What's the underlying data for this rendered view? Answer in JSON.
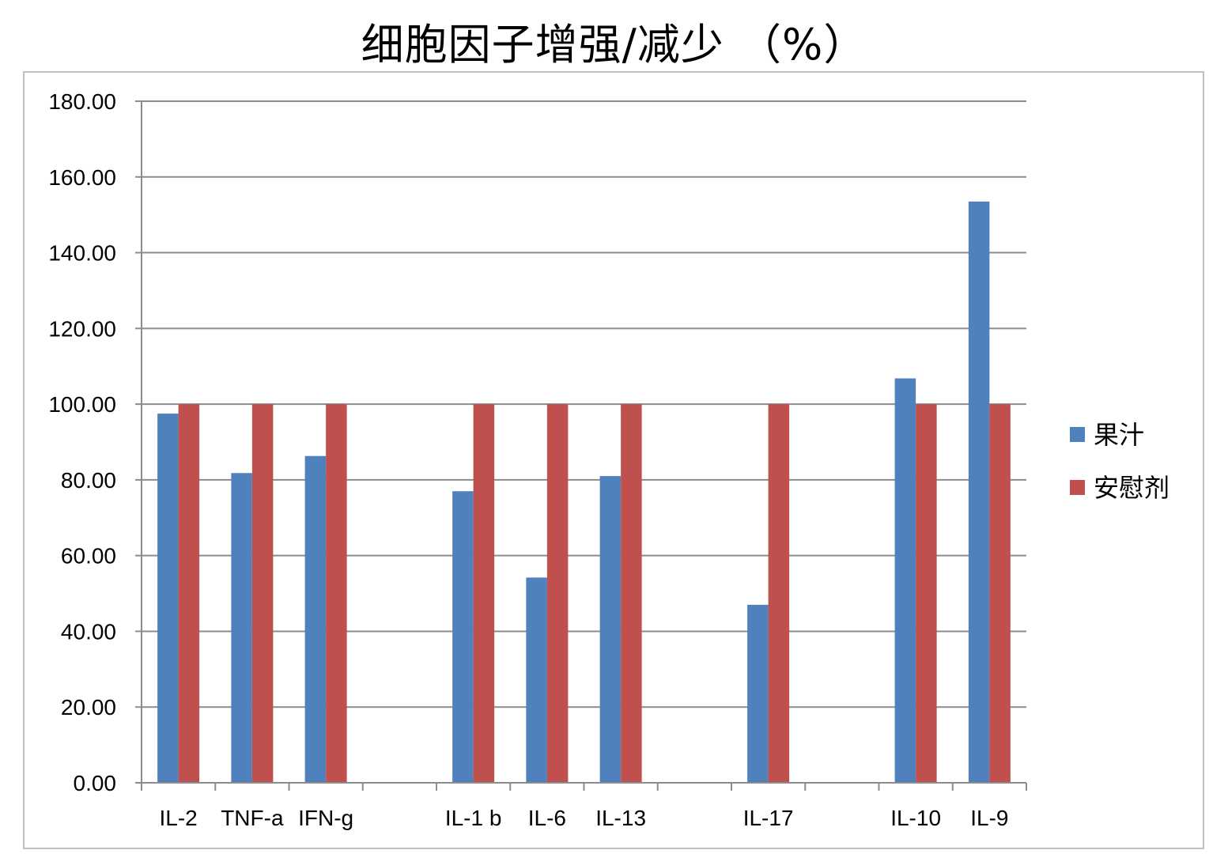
{
  "chart_data": {
    "type": "bar",
    "title": "细胞因子增强/减少 （%）",
    "categories": [
      "IL-2",
      "TNF-a",
      "IFN-g",
      "",
      "IL-1 b",
      "IL-6",
      "IL-13",
      "",
      "IL-17",
      "",
      "IL-10",
      "IL-9"
    ],
    "series": [
      {
        "name": "果汁",
        "color": "#4f81bd",
        "values": [
          97.5,
          81.8,
          86.3,
          null,
          77.0,
          54.2,
          81.0,
          null,
          47.0,
          null,
          106.8,
          153.5
        ]
      },
      {
        "name": "安慰剂",
        "color": "#c0504d",
        "values": [
          100,
          100,
          100,
          null,
          100,
          100,
          100,
          null,
          100,
          null,
          100,
          100
        ]
      }
    ],
    "ylim": [
      0,
      180
    ],
    "yticks": [
      "0.00",
      "20.00",
      "40.00",
      "60.00",
      "80.00",
      "100.00",
      "120.00",
      "140.00",
      "160.00",
      "180.00"
    ],
    "xlabel": "",
    "ylabel": "",
    "grid": true,
    "legend_position": "right"
  }
}
